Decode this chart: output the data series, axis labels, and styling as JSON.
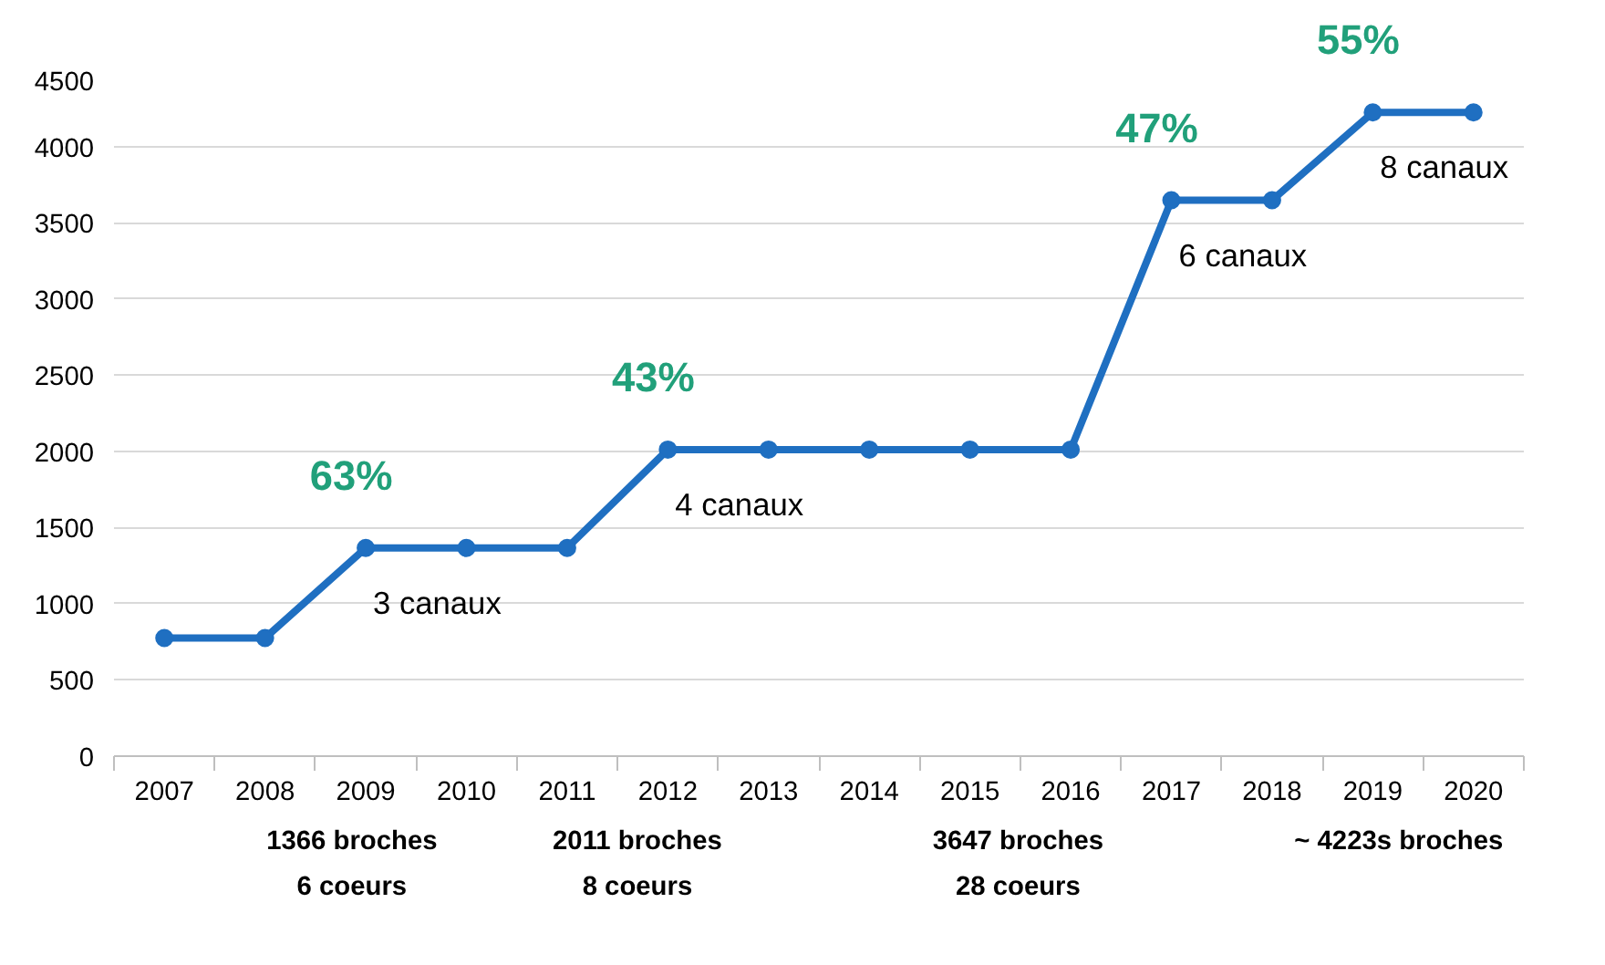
{
  "chart_data": {
    "type": "line",
    "categories": [
      "2007",
      "2008",
      "2009",
      "2010",
      "2011",
      "2012",
      "2013",
      "2014",
      "2015",
      "2016",
      "2017",
      "2018",
      "2019",
      "2020"
    ],
    "series": [
      {
        "color": "#1f6fc1",
        "values": [
          775,
          775,
          1366,
          1366,
          1366,
          2011,
          2011,
          2011,
          2011,
          2011,
          3647,
          3647,
          4223,
          4223
        ]
      }
    ],
    "ylim": [
      0,
      4500
    ],
    "yticks": [
      0,
      500,
      1000,
      1500,
      2000,
      2500,
      3000,
      3500,
      4000,
      4500
    ],
    "grid": "y",
    "marker": "circle",
    "line_style": "solid",
    "annotations": [
      {
        "text": "63%",
        "x": "2009",
        "y": 1366
      },
      {
        "text": "43%",
        "x": "2012",
        "y": 2011
      },
      {
        "text": "47%",
        "x": "2017",
        "y": 3647
      },
      {
        "text": "55%",
        "x": "2019",
        "y": 4223
      },
      {
        "text": "3 canaux",
        "x": "2009",
        "y": 1366
      },
      {
        "text": "4 canaux",
        "x": "2012",
        "y": 2011
      },
      {
        "text": "6 canaux",
        "x": "2017",
        "y": 3647
      },
      {
        "text": "8 canaux",
        "x": "2019",
        "y": 4223
      },
      "1366 broches\n6 coeurs",
      "2011 broches\n8 coeurs",
      "3647 broches\n28 coeurs",
      "~ 4223s broches"
    ]
  }
}
